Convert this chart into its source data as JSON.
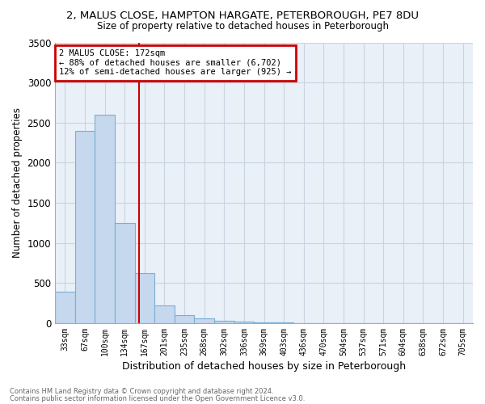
{
  "title": "2, MALUS CLOSE, HAMPTON HARGATE, PETERBOROUGH, PE7 8DU",
  "subtitle": "Size of property relative to detached houses in Peterborough",
  "xlabel": "Distribution of detached houses by size in Peterborough",
  "ylabel": "Number of detached properties",
  "footnote1": "Contains HM Land Registry data © Crown copyright and database right 2024.",
  "footnote2": "Contains public sector information licensed under the Open Government Licence v3.0.",
  "annotation_line1": "2 MALUS CLOSE: 172sqm",
  "annotation_line2": "← 88% of detached houses are smaller (6,702)",
  "annotation_line3": "12% of semi-detached houses are larger (925) →",
  "bar_color": "#c5d8ee",
  "bar_edge_color": "#7aafd4",
  "vline_color": "#cc0000",
  "annotation_box_color": "#cc0000",
  "plot_bg_color": "#eaf0f8",
  "categories": [
    "33sqm",
    "67sqm",
    "100sqm",
    "134sqm",
    "167sqm",
    "201sqm",
    "235sqm",
    "268sqm",
    "302sqm",
    "336sqm",
    "369sqm",
    "403sqm",
    "436sqm",
    "470sqm",
    "504sqm",
    "537sqm",
    "571sqm",
    "604sqm",
    "638sqm",
    "672sqm",
    "705sqm"
  ],
  "values": [
    390,
    2400,
    2600,
    1250,
    620,
    220,
    105,
    60,
    30,
    15,
    8,
    8,
    0,
    0,
    0,
    0,
    0,
    0,
    0,
    0,
    0
  ],
  "ylim": [
    0,
    3500
  ],
  "yticks": [
    0,
    500,
    1000,
    1500,
    2000,
    2500,
    3000,
    3500
  ],
  "vline_x": 3.72,
  "bg_color": "#ffffff",
  "grid_color": "#c8d4e0"
}
